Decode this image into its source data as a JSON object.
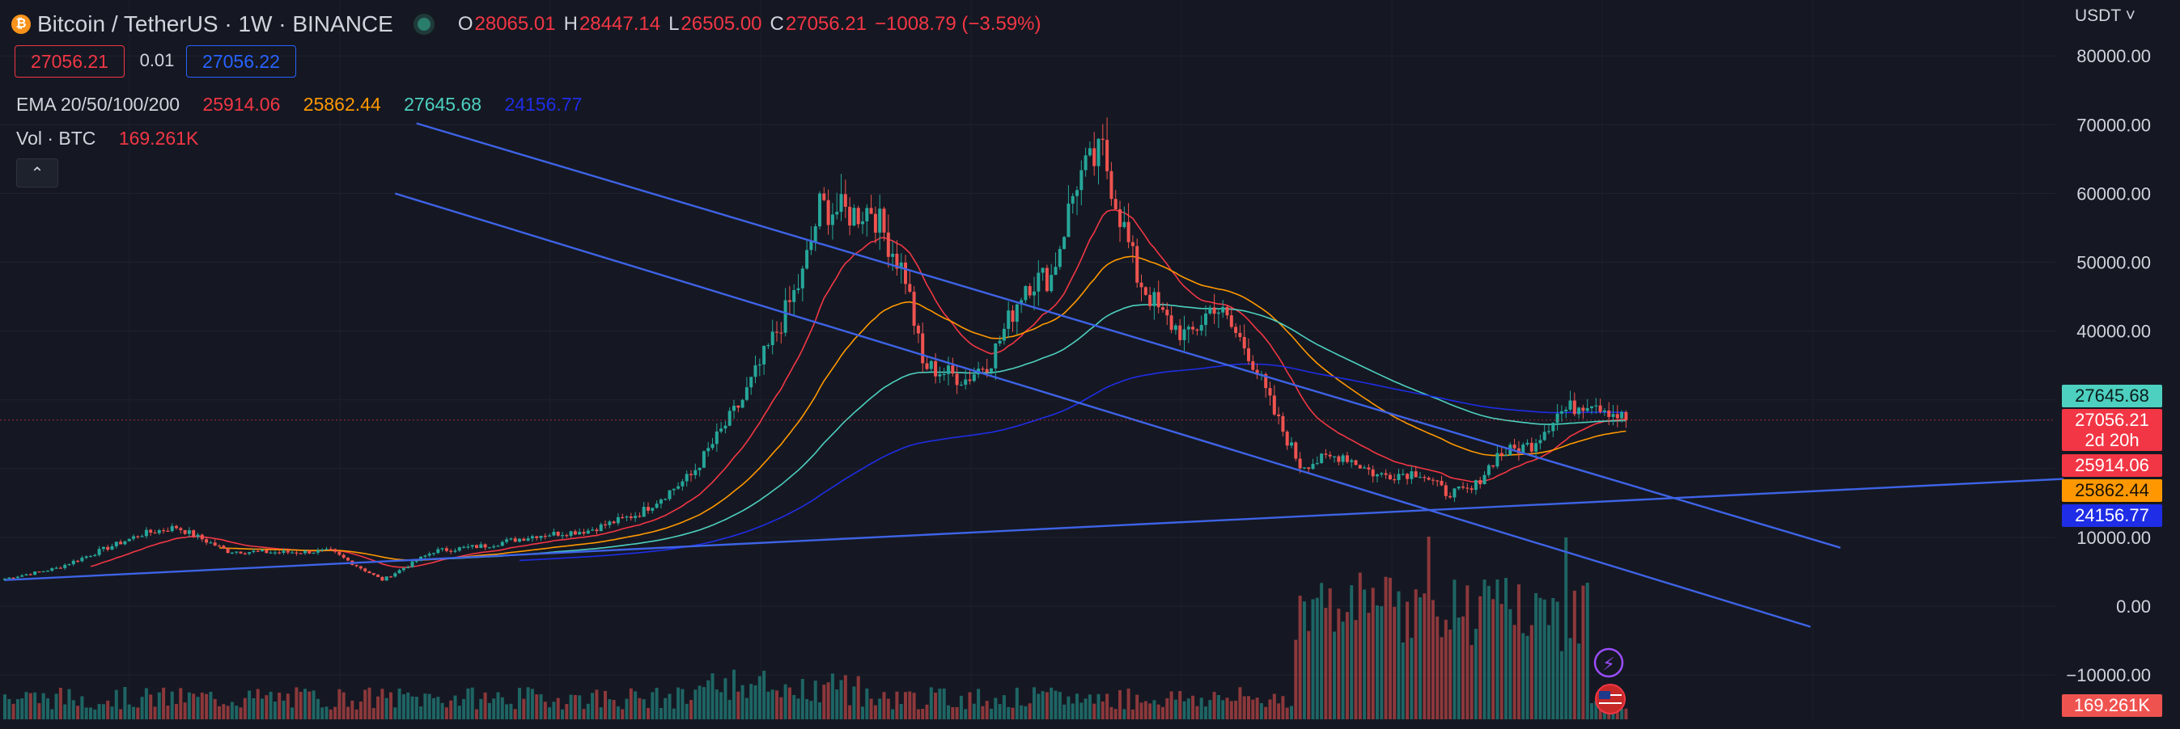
{
  "header": {
    "symbol": "Bitcoin / TetherUS · 1W · BINANCE",
    "coin_glyph": "₿",
    "ohlc": {
      "o_label": "O",
      "o_value": "28065.01",
      "h_label": "H",
      "h_value": "28447.14",
      "l_label": "L",
      "l_value": "26505.00",
      "c_label": "C",
      "c_value": "27056.21",
      "change": "−1008.79 (−3.59%)"
    }
  },
  "trade": {
    "sell": "27056.21",
    "spread": "0.01",
    "buy": "27056.22"
  },
  "ema": {
    "label": "EMA 20/50/100/200",
    "v20": "25914.06",
    "v50": "25862.44",
    "v100": "27645.68",
    "v200": "24156.77"
  },
  "volume": {
    "label": "Vol · BTC",
    "value": "169.261K"
  },
  "collapse_glyph": "⌃",
  "axis": {
    "unit": "USDT ˅",
    "ticks": [
      "80000.00",
      "70000.00",
      "60000.00",
      "50000.00",
      "40000.00",
      "30000.00",
      "20000.00",
      "10000.00",
      "0.00",
      "−10000.00"
    ]
  },
  "price_tags": {
    "ema100": "27645.68",
    "last": "27056.21",
    "countdown": "2d 20h",
    "ema20": "25914.06",
    "ema50": "25862.44",
    "ema200": "24156.77",
    "volume": "169.261K"
  },
  "colors": {
    "bg": "#151822",
    "up": "#26a69a",
    "down": "#ef5350",
    "ema20": "#f23645",
    "ema50": "#ff9800",
    "ema100": "#4dd0c0",
    "ema200": "#1f2de6",
    "trendline": "#3e63e6"
  },
  "chart_data": {
    "type": "candlestick",
    "interval": "1W",
    "ylim": [
      -13000,
      84000
    ],
    "y_ticks": [
      80000,
      70000,
      60000,
      50000,
      40000,
      30000,
      20000,
      10000,
      0,
      -10000
    ],
    "close_anchors": [
      [
        0,
        4000
      ],
      [
        12,
        5500
      ],
      [
        20,
        7500
      ],
      [
        32,
        10500
      ],
      [
        40,
        11500
      ],
      [
        52,
        8000
      ],
      [
        64,
        7800
      ],
      [
        76,
        8000
      ],
      [
        88,
        3800
      ],
      [
        100,
        8000
      ],
      [
        112,
        8800
      ],
      [
        124,
        10300
      ],
      [
        136,
        11000
      ],
      [
        148,
        13500
      ],
      [
        160,
        19000
      ],
      [
        172,
        30000
      ],
      [
        180,
        40000
      ],
      [
        186,
        48000
      ],
      [
        190,
        58000
      ],
      [
        198,
        57000
      ],
      [
        202,
        58000
      ],
      [
        210,
        48000
      ],
      [
        214,
        35000
      ],
      [
        224,
        33000
      ],
      [
        230,
        36000
      ],
      [
        238,
        47000
      ],
      [
        244,
        48000
      ],
      [
        250,
        62000
      ],
      [
        256,
        66000
      ],
      [
        264,
        48000
      ],
      [
        270,
        42000
      ],
      [
        276,
        39000
      ],
      [
        282,
        44000
      ],
      [
        290,
        37000
      ],
      [
        296,
        28000
      ],
      [
        302,
        20500
      ],
      [
        312,
        22000
      ],
      [
        320,
        19000
      ],
      [
        330,
        19500
      ],
      [
        336,
        16500
      ],
      [
        342,
        16800
      ],
      [
        348,
        22000
      ],
      [
        356,
        23500
      ],
      [
        362,
        28000
      ],
      [
        370,
        30000
      ],
      [
        378,
        27056
      ]
    ],
    "ema": {
      "periods": [
        20,
        50,
        100,
        200
      ],
      "last": [
        25914.06,
        25862.44,
        27645.68,
        24156.77
      ]
    },
    "last_close": 27056.21
  }
}
